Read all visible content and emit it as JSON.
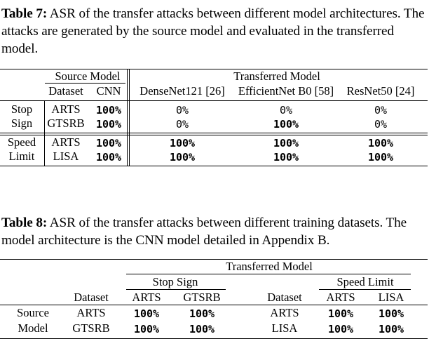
{
  "table7": {
    "caption_label": "Table 7:",
    "caption_text": " ASR of the transfer attacks between different model architectures. The attacks are generated by the source model and evaluated in the transferred model.",
    "source_model": "Source Model",
    "transferred_model": "Transferred Model",
    "col_dataset": "Dataset",
    "col_cnn": "CNN",
    "col_densenet": "DenseNet121 [26]",
    "col_efficientnet": "EfficientNet B0 [58]",
    "col_resnet": "ResNet50 [24]",
    "rows": [
      {
        "group": "Stop",
        "dataset": "ARTS",
        "cnn": "100%",
        "densenet": "0%",
        "efficientnet": "0%",
        "resnet": "0%"
      },
      {
        "group": "Sign",
        "dataset": "GTSRB",
        "cnn": "100%",
        "densenet": "0%",
        "efficientnet": "100%",
        "resnet": "0%"
      },
      {
        "group": "Speed",
        "dataset": "ARTS",
        "cnn": "100%",
        "densenet": "100%",
        "efficientnet": "100%",
        "resnet": "100%"
      },
      {
        "group": "Limit",
        "dataset": "LISA",
        "cnn": "100%",
        "densenet": "100%",
        "efficientnet": "100%",
        "resnet": "100%"
      }
    ]
  },
  "table8": {
    "caption_label": "Table 8:",
    "caption_text": " ASR of the transfer attacks between different training datasets. The model architecture is the CNN model detailed in Appendix B.",
    "transferred_model": "Transferred Model",
    "stop_sign": "Stop Sign",
    "speed_limit": "Speed Limit",
    "left_dataset_header": "Dataset",
    "left_col1": "ARTS",
    "left_col2": "GTSRB",
    "right_dataset_header": "Dataset",
    "right_col1": "ARTS",
    "right_col2": "LISA",
    "row_labels": [
      "Source",
      "Model"
    ],
    "rows": [
      {
        "left_dataset": "ARTS",
        "left_v1": "100%",
        "left_v2": "100%",
        "right_dataset": "ARTS",
        "right_v1": "100%",
        "right_v2": "100%"
      },
      {
        "left_dataset": "GTSRB",
        "left_v1": "100%",
        "left_v2": "100%",
        "right_dataset": "LISA",
        "right_v1": "100%",
        "right_v2": "100%"
      }
    ]
  }
}
